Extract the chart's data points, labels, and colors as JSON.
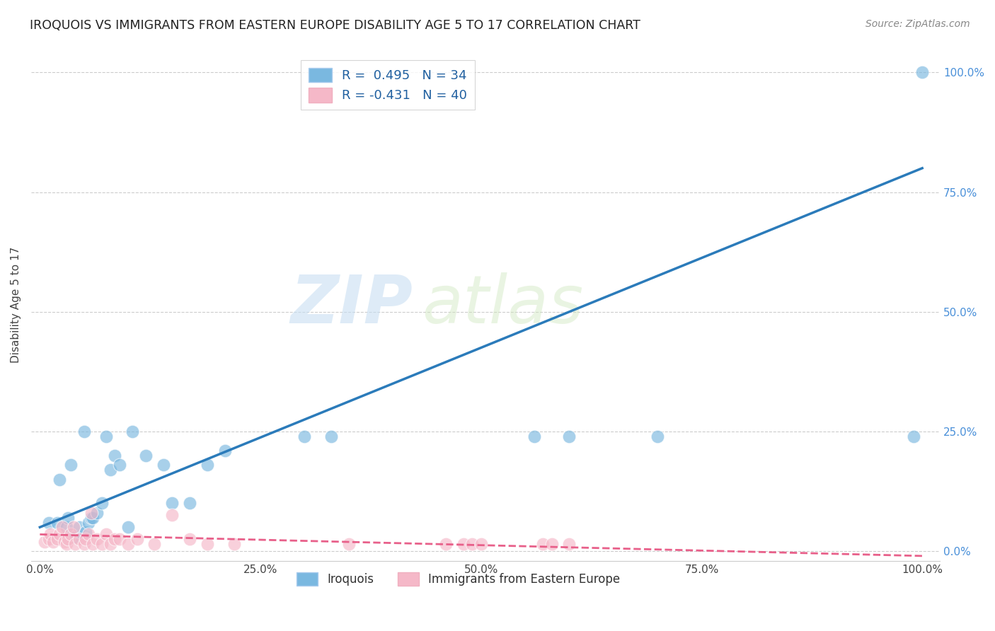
{
  "title": "IROQUOIS VS IMMIGRANTS FROM EASTERN EUROPE DISABILITY AGE 5 TO 17 CORRELATION CHART",
  "source": "Source: ZipAtlas.com",
  "xlabel_vals": [
    0,
    25,
    50,
    75,
    100
  ],
  "ylabel": "Disability Age 5 to 17",
  "ylabel_vals": [
    0,
    25,
    50,
    75,
    100
  ],
  "blue_R": 0.495,
  "blue_N": 34,
  "pink_R": -0.431,
  "pink_N": 40,
  "blue_color": "#7ab8e0",
  "pink_color": "#f5b8c8",
  "blue_line_color": "#2b7bba",
  "pink_line_color": "#e8608a",
  "legend_label_blue": "Iroquois",
  "legend_label_pink": "Immigrants from Eastern Europe",
  "watermark_zip": "ZIP",
  "watermark_atlas": "atlas",
  "blue_x": [
    1.0,
    2.0,
    2.2,
    3.0,
    3.2,
    3.5,
    4.0,
    4.5,
    5.0,
    5.2,
    5.5,
    5.8,
    6.0,
    6.5,
    7.0,
    7.5,
    8.0,
    8.5,
    9.0,
    10.0,
    10.5,
    12.0,
    14.0,
    15.0,
    17.0,
    19.0,
    21.0,
    30.0,
    33.0,
    56.0,
    60.0,
    70.0,
    99.0,
    100.0
  ],
  "blue_y": [
    6.0,
    6.0,
    15.0,
    5.0,
    7.0,
    18.0,
    3.0,
    5.0,
    25.0,
    4.0,
    6.0,
    7.0,
    7.0,
    8.0,
    10.0,
    24.0,
    17.0,
    20.0,
    18.0,
    5.0,
    25.0,
    20.0,
    18.0,
    10.0,
    10.0,
    18.0,
    21.0,
    24.0,
    24.0,
    24.0,
    24.0,
    24.0,
    24.0,
    100.0
  ],
  "pink_x": [
    0.5,
    1.0,
    1.2,
    1.5,
    2.0,
    2.2,
    2.5,
    2.8,
    3.0,
    3.2,
    3.5,
    3.8,
    4.0,
    4.5,
    5.0,
    5.2,
    5.5,
    5.8,
    6.0,
    6.5,
    7.0,
    7.5,
    8.0,
    8.5,
    9.0,
    10.0,
    11.0,
    13.0,
    15.0,
    17.0,
    19.0,
    22.0,
    35.0,
    46.0,
    48.0,
    49.0,
    50.0,
    57.0,
    58.0,
    60.0
  ],
  "pink_y": [
    2.0,
    2.5,
    3.5,
    2.0,
    2.5,
    3.5,
    5.0,
    2.0,
    1.5,
    2.5,
    3.5,
    5.0,
    1.5,
    2.5,
    1.5,
    2.5,
    3.5,
    8.0,
    1.5,
    2.5,
    1.5,
    3.5,
    1.5,
    2.5,
    2.5,
    1.5,
    2.5,
    1.5,
    7.5,
    2.5,
    1.5,
    1.5,
    1.5,
    1.5,
    1.5,
    1.5,
    1.5,
    1.5,
    1.5,
    1.5
  ],
  "xlim": [
    -1,
    102
  ],
  "ylim": [
    -2,
    105
  ]
}
